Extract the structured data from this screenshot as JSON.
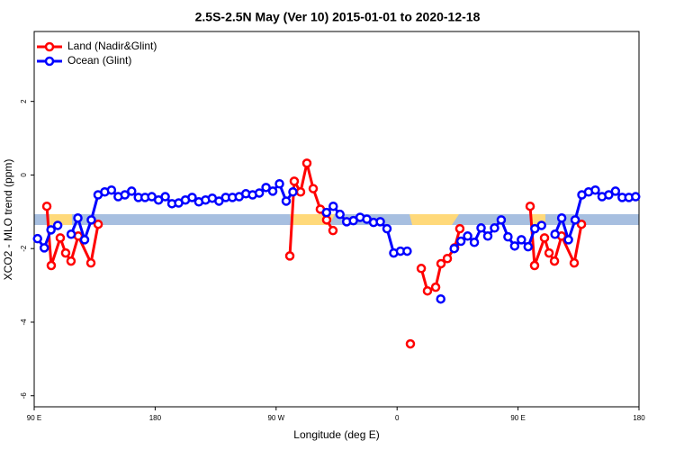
{
  "chart_data": {
    "type": "line",
    "title": "2.5S-2.5N May (Ver 10)   2015-01-01 to 2020-12-18",
    "x_label": "Longitude (deg E)",
    "y_label": "XCO2 - MLO trend (ppm)",
    "xlim": [
      90,
      540
    ],
    "xticks": [
      {
        "value": 90,
        "label": "90 E"
      },
      {
        "value": 180,
        "label": "180"
      },
      {
        "value": 270,
        "label": "90 W"
      },
      {
        "value": 360,
        "label": "0"
      },
      {
        "value": 450,
        "label": "90 E"
      },
      {
        "value": 540,
        "label": "180"
      }
    ],
    "ylim": [
      -6.3,
      3.9
    ],
    "yticks": [
      -6,
      -4,
      -2,
      0,
      2
    ],
    "legend": "top-left",
    "series": [
      {
        "name": "Land (Nadir&Glint)",
        "color": "#ff0000",
        "x": [
          99.4,
          102.7,
          109.4,
          113.4,
          117.4,
          122.8,
          132.2,
          137.6,
          null,
          280.2,
          283.5,
          288.2,
          292.9,
          297.6,
          302.9,
          307.6,
          312.3,
          null,
          369.9,
          null,
          378,
          382.6,
          388.7,
          392.7,
          397.4,
          402.8,
          406.7,
          null,
          459,
          462.3,
          469.7,
          473.1,
          477.1,
          482.4,
          491.8,
          497.2
        ],
        "values": [
          -0.85,
          -2.46,
          -1.71,
          -2.12,
          -2.34,
          -1.66,
          -2.39,
          -1.34,
          null,
          -2.2,
          -0.17,
          -0.46,
          0.32,
          -0.37,
          -0.93,
          -1.22,
          -1.51,
          null,
          -4.59,
          null,
          -2.54,
          -3.15,
          -3.05,
          -2.41,
          -2.27,
          -1.98,
          -1.46,
          null,
          -0.85,
          -2.46,
          -1.71,
          -2.12,
          -2.34,
          -1.66,
          -2.39,
          -1.34
        ]
      },
      {
        "name": "Ocean (Glint)",
        "color": "#0000ff",
        "x": [
          92.5,
          97.5,
          102.5,
          107.5,
          112.5,
          117.5,
          122.5,
          127.5,
          132.5,
          137.5,
          142.5,
          147.5,
          152.5,
          157.5,
          162.5,
          167.5,
          172.5,
          177.5,
          182.5,
          187.5,
          192.5,
          197.5,
          202.5,
          207.5,
          212.5,
          217.5,
          222.5,
          227.5,
          232.5,
          237.5,
          242.5,
          247.5,
          252.5,
          257.5,
          262.5,
          267.5,
          272.5,
          277.5,
          282.5,
          287.5,
          292.5,
          297.5,
          302.5,
          307.5,
          312.5,
          317.5,
          322.5,
          327.5,
          332.5,
          337.5,
          342.5,
          347.5,
          352.5,
          357.5,
          362.5,
          367.5,
          372.5,
          377.5,
          382.5,
          387.5,
          392.5,
          397.5,
          402.5,
          407.5,
          412.5,
          417.5,
          422.5,
          427.5,
          432.5,
          437.5,
          442.5,
          447.5,
          452.5,
          457.5,
          462.5,
          467.5,
          472.5,
          477.5,
          482.5,
          487.5,
          492.5,
          497.5,
          502.5,
          507.5,
          512.5,
          517.5,
          522.5,
          527.5,
          532.5,
          537.5
        ],
        "values": [
          -1.73,
          -1.98,
          -1.49,
          -1.37,
          null,
          -1.61,
          -1.17,
          -1.76,
          -1.22,
          -0.54,
          -0.46,
          -0.41,
          -0.59,
          -0.54,
          -0.44,
          -0.61,
          -0.61,
          -0.59,
          -0.68,
          -0.59,
          -0.78,
          -0.76,
          -0.68,
          -0.61,
          -0.73,
          -0.68,
          -0.63,
          -0.71,
          -0.61,
          -0.61,
          -0.59,
          -0.51,
          -0.54,
          -0.49,
          -0.34,
          -0.44,
          -0.24,
          -0.71,
          -0.46,
          null,
          null,
          null,
          null,
          -1.02,
          -0.85,
          -1.07,
          -1.27,
          -1.24,
          -1.15,
          -1.2,
          -1.29,
          -1.27,
          -1.46,
          -2.12,
          -2.07,
          -2.07,
          null,
          null,
          null,
          null,
          -3.37,
          null,
          -2.0,
          -1.8,
          -1.66,
          -1.83,
          -1.44,
          -1.66,
          -1.44,
          -1.22,
          -1.68,
          -1.93,
          -1.76,
          -1.95,
          -1.46,
          -1.37,
          null,
          -1.61,
          -1.17,
          -1.76,
          -1.22,
          -0.54,
          -0.46,
          -0.41,
          -0.59,
          -0.54,
          -0.44,
          -0.61,
          -0.61,
          -0.59
        ]
      }
    ]
  }
}
